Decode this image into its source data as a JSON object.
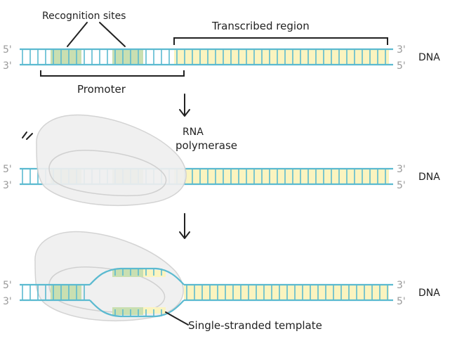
{
  "labels": {
    "recognition_sites": "Recognition sites",
    "transcribed_region": "Transcribed region",
    "promoter": "Promoter",
    "rna_polymerase_line1": "RNA",
    "rna_polymerase_line2": "polymerase",
    "single_stranded_template": "Single-stranded template",
    "dna": "DNA",
    "five_prime": "5'",
    "three_prime": "3'"
  },
  "colors": {
    "strand": "#5bbad0",
    "recognition_fill": "#c9dfb1",
    "transcribed_fill": "#fbf4bf",
    "polymerase_fill": "#efefef",
    "polymerase_stroke": "#d0d0d0",
    "text": "#222222",
    "end_label": "#9a9a9a"
  }
}
